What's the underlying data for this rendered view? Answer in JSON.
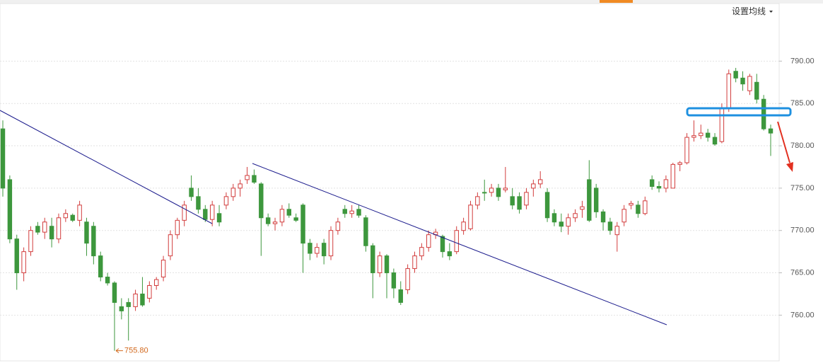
{
  "chart_data": {
    "type": "candlestick",
    "menu_label": "设置均线",
    "ylim": [
      754.6,
      796.8
    ],
    "yticks": [
      {
        "value": 760,
        "label": "760.00"
      },
      {
        "value": 765,
        "label": "765.00"
      },
      {
        "value": 770,
        "label": "770.00"
      },
      {
        "value": 775,
        "label": "775.00"
      },
      {
        "value": 780,
        "label": "780.00"
      },
      {
        "value": 785,
        "label": "785.00"
      },
      {
        "value": 790,
        "label": "790.00"
      }
    ],
    "grid": true,
    "up_color": "#d23c3c",
    "down_color": "#3d973d",
    "low_marker": {
      "value": 755.8,
      "label": "755.80"
    },
    "candles": [
      [
        782,
        783,
        774,
        775
      ],
      [
        776,
        776.5,
        768.5,
        769
      ],
      [
        769,
        769.5,
        763,
        765
      ],
      [
        765,
        768,
        764,
        767.5
      ],
      [
        767.5,
        770.5,
        767,
        770
      ],
      [
        770.5,
        771,
        769.5,
        769.8
      ],
      [
        769.8,
        771.5,
        769,
        771
      ],
      [
        770.5,
        771.5,
        768,
        769
      ],
      [
        769,
        772,
        768.5,
        771.5
      ],
      [
        771.5,
        772.5,
        771,
        772
      ],
      [
        771.8,
        772,
        771,
        771.2
      ],
      [
        771.2,
        773.5,
        770.5,
        773
      ],
      [
        771,
        771.5,
        767,
        768.5
      ],
      [
        770.5,
        771,
        766,
        767
      ],
      [
        767,
        767.5,
        764,
        764.5
      ],
      [
        764.5,
        765,
        763.5,
        763.8
      ],
      [
        763.8,
        764,
        755.8,
        761.5
      ],
      [
        761,
        762,
        759.5,
        760.5
      ],
      [
        761.5,
        762,
        757,
        761
      ],
      [
        761,
        763,
        760.5,
        762.5
      ],
      [
        762.5,
        764.5,
        761,
        761.2
      ],
      [
        762,
        764,
        761.5,
        763.5
      ],
      [
        763.5,
        764.5,
        763,
        764.2
      ],
      [
        764.5,
        767,
        764,
        766.5
      ],
      [
        767,
        770,
        766.5,
        769.5
      ],
      [
        769.5,
        771.5,
        769,
        771.2
      ],
      [
        771.2,
        773.5,
        770.5,
        773
      ],
      [
        775,
        776.5,
        773.5,
        774
      ],
      [
        774,
        775,
        772,
        772.5
      ],
      [
        772.5,
        773,
        771,
        771.3
      ],
      [
        771.3,
        773.5,
        770.5,
        773
      ],
      [
        772,
        773,
        770.5,
        771
      ],
      [
        773,
        774.5,
        772.5,
        774
      ],
      [
        774,
        775.5,
        773.5,
        775
      ],
      [
        775,
        776,
        774,
        775.5
      ],
      [
        776,
        777.5,
        775.5,
        776.5
      ],
      [
        776.5,
        777.2,
        775.5,
        775.7
      ],
      [
        775.5,
        775.7,
        767,
        771.5
      ],
      [
        771.5,
        772,
        770.5,
        770.8
      ],
      [
        770.8,
        771.5,
        770,
        771
      ],
      [
        771,
        773,
        770.5,
        772.5
      ],
      [
        772.5,
        773.2,
        771.5,
        771.8
      ],
      [
        771.5,
        772,
        771,
        771.2
      ],
      [
        773,
        773.2,
        765,
        768.5
      ],
      [
        768.5,
        769,
        766.5,
        767.3
      ],
      [
        767.3,
        768.5,
        766.8,
        768
      ],
      [
        768.5,
        769,
        766,
        767
      ],
      [
        767,
        770.5,
        766.5,
        770
      ],
      [
        770,
        771.5,
        769.5,
        771
      ],
      [
        772.5,
        773,
        771.5,
        772
      ],
      [
        772,
        773,
        771.5,
        772.3
      ],
      [
        772.5,
        773,
        771.5,
        771.8
      ],
      [
        771.5,
        771.8,
        767.5,
        768.2
      ],
      [
        768.2,
        768.5,
        762,
        765
      ],
      [
        765,
        767.5,
        764.5,
        767
      ],
      [
        767,
        767.2,
        762,
        765
      ],
      [
        765,
        765.5,
        762,
        763.2
      ],
      [
        763,
        764,
        761.2,
        761.5
      ],
      [
        763,
        766,
        762.5,
        765.5
      ],
      [
        765.5,
        767.5,
        765,
        767
      ],
      [
        767,
        768.5,
        766.5,
        768
      ],
      [
        768,
        770,
        767.5,
        769.5
      ],
      [
        769.5,
        770.2,
        769,
        769.8
      ],
      [
        769.3,
        769.5,
        766.8,
        767.5
      ],
      [
        767.5,
        768.5,
        766.5,
        767
      ],
      [
        767.5,
        770.5,
        767.2,
        770
      ],
      [
        770,
        771.5,
        769.5,
        771
      ],
      [
        770.2,
        773.5,
        770,
        773
      ],
      [
        773,
        774.5,
        772.5,
        774
      ],
      [
        774.5,
        776,
        773.5,
        774.5
      ],
      [
        774.5,
        775.5,
        774,
        775
      ],
      [
        775,
        775.5,
        773.5,
        774
      ],
      [
        774.8,
        777.5,
        774.5,
        775
      ],
      [
        774,
        775,
        772.5,
        773
      ],
      [
        774,
        774.5,
        772,
        772.5
      ],
      [
        773,
        775,
        772.5,
        774.5
      ],
      [
        775,
        776,
        774,
        775.5
      ],
      [
        775.5,
        777,
        775,
        776
      ],
      [
        774.5,
        775,
        771,
        771.5
      ],
      [
        772,
        772.5,
        770.5,
        771
      ],
      [
        771,
        772,
        769.8,
        770.5
      ],
      [
        770.5,
        772,
        769.5,
        771.5
      ],
      [
        771.5,
        772.5,
        771,
        772
      ],
      [
        772.5,
        773.5,
        771.5,
        772.8
      ],
      [
        776,
        778.3,
        771,
        771.2
      ],
      [
        775,
        775.5,
        771.5,
        772.2
      ],
      [
        772.2,
        772.5,
        770,
        771
      ],
      [
        771,
        771.5,
        769.5,
        770
      ],
      [
        769.5,
        771,
        767.5,
        770.5
      ],
      [
        771,
        773,
        770.5,
        772.5
      ],
      [
        773,
        773.5,
        772.5,
        773.2
      ],
      [
        773,
        773.5,
        771.5,
        772
      ],
      [
        772,
        774,
        771.8,
        773.5
      ],
      [
        776,
        776.5,
        774.8,
        775.2
      ],
      [
        775.2,
        775.8,
        774.5,
        775
      ],
      [
        775,
        776.5,
        774.5,
        776
      ],
      [
        775,
        778,
        775,
        777.8
      ],
      [
        777.8,
        778.2,
        777,
        778
      ],
      [
        778,
        781.5,
        777.8,
        781
      ],
      [
        781,
        783,
        780.5,
        781.2
      ],
      [
        781.2,
        782.5,
        780.8,
        781.5
      ],
      [
        781.5,
        782,
        780.5,
        781
      ],
      [
        781,
        781.5,
        780,
        780.2
      ],
      [
        780.5,
        785,
        780.3,
        784.5
      ],
      [
        784.5,
        789,
        784,
        788.5
      ],
      [
        788.8,
        789.2,
        787.5,
        788
      ],
      [
        788,
        788.8,
        786.5,
        787.3
      ],
      [
        786.5,
        788.5,
        786,
        788.2
      ],
      [
        787.5,
        788.5,
        785,
        785.5
      ],
      [
        785.5,
        786,
        781.8,
        782
      ],
      [
        782,
        782.5,
        778.8,
        781.5
      ]
    ]
  }
}
